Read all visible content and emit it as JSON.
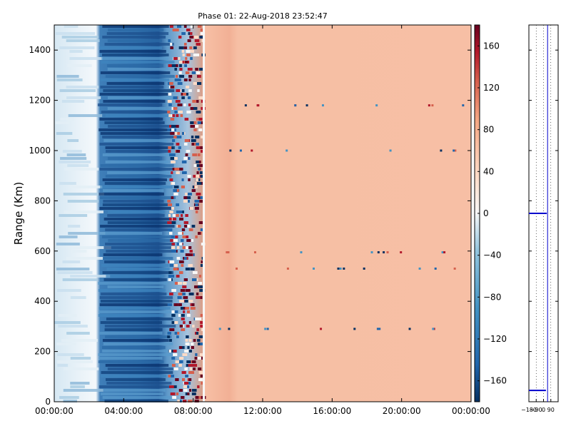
{
  "chart_data": [
    {
      "type": "heatmap",
      "title": "Phase 01: 22-Aug-2018 23:52:47",
      "xlabel": "",
      "ylabel": "Range (Km)",
      "x_tick_labels": [
        "00:00:00",
        "04:00:00",
        "08:00:00",
        "12:00:00",
        "16:00:00",
        "20:00:00",
        "00:00:00"
      ],
      "x_range_hours": [
        0,
        24
      ],
      "y_ticks": [
        0,
        200,
        400,
        600,
        800,
        1000,
        1200,
        1400
      ],
      "ylim": [
        0,
        1500
      ],
      "colormap": "RdBu_r (blue = negative, red = positive)",
      "colorbar": {
        "ticks": [
          160,
          120,
          80,
          40,
          0,
          -40,
          -80,
          -120,
          -160
        ],
        "range": [
          -180,
          180
        ],
        "low_color": "#053061",
        "mid_color": "#f7f7f7",
        "high_color": "#67001f"
      },
      "data_regions": [
        {
          "from_hour": 0.0,
          "to_hour": 2.5,
          "approx_value": -30,
          "description": "light blue / near white"
        },
        {
          "from_hour": 2.5,
          "to_hour": 6.5,
          "approx_value": -150,
          "description": "dark blue"
        },
        {
          "from_hour": 6.5,
          "to_hour": 8.6,
          "approx_value": 0,
          "description": "mixed blue / red / white noise"
        },
        {
          "from_hour": 8.6,
          "to_hour": 24.0,
          "approx_value": 55,
          "description": "uniform light salmon"
        }
      ],
      "grid": false
    },
    {
      "type": "line",
      "x_tick_labels": [
        "−180",
        "−90",
        "0",
        "90"
      ],
      "x_ticks": [
        -180,
        -90,
        0,
        90
      ],
      "xlim": [
        -180,
        180
      ],
      "ylim": [
        0,
        1500
      ],
      "grid": true,
      "line_color": "#0000cc"
    }
  ]
}
